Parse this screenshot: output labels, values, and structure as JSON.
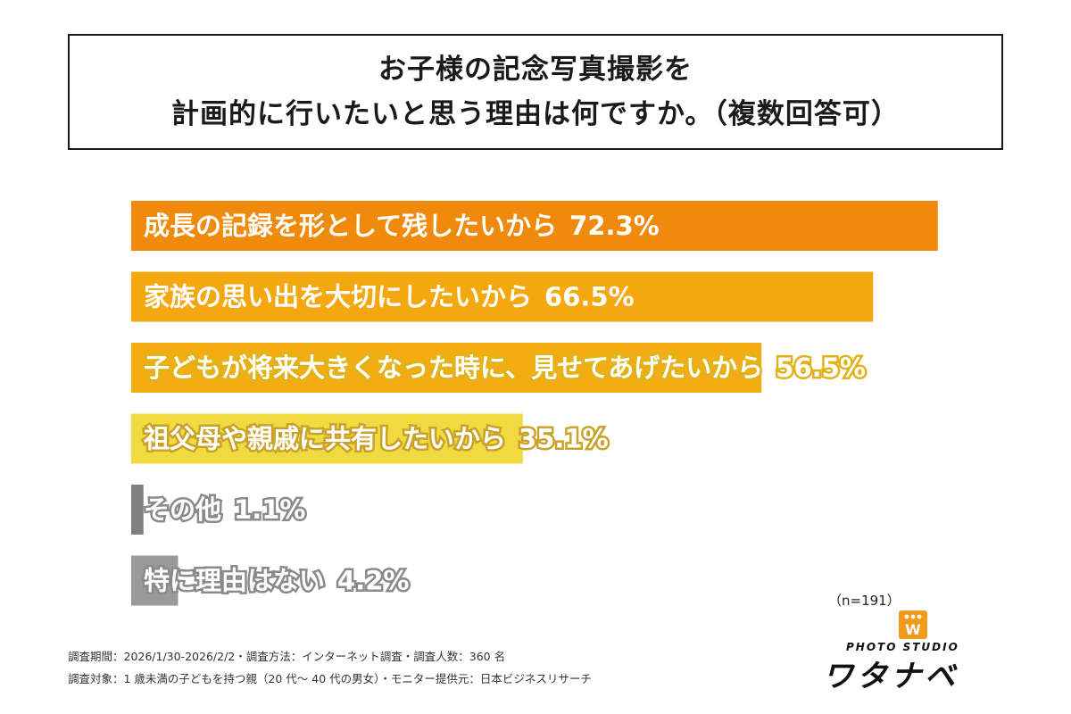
{
  "title": {
    "line1": "お子様の記念写真撮影を",
    "line2": "計画的に行いたいと思う理由は何ですか。（複数回答可）"
  },
  "chart_data": {
    "type": "bar",
    "orientation": "horizontal",
    "categories": [
      "成長の記録を形として残したいから",
      "家族の思い出を大切にしたいから",
      "子どもが将来大きくなった時に、見せてあげたいから",
      "祖父母や親戚に共有したいから",
      "その他",
      "特に理由はない"
    ],
    "values": [
      72.3,
      66.5,
      56.5,
      35.1,
      1.1,
      4.2
    ],
    "value_labels": [
      "72.3%",
      "66.5%",
      "56.5%",
      "35.1%",
      "1.1%",
      "4.2%"
    ],
    "bar_colors": [
      "#ef8a0c",
      "#f5a70f",
      "#f3ad12",
      "#f1d940",
      "#808080",
      "#9a9a9a"
    ],
    "label_outline_colors": [
      "none",
      "none",
      "#e2b21a",
      "#c9a227",
      "#8a8a8a",
      "#8a8a8a"
    ],
    "xlim": [
      0,
      100
    ],
    "grid": false,
    "legend": "none"
  },
  "sample_size": "（n=191）",
  "footnotes": {
    "line1": "調査期間：2026/1/30-2026/2/2・調査方法：インターネット調査・調査人数：360 名",
    "line2": "調査対象：1 歳未満の子どもを持つ親（20 代～ 40 代の男女）・モニター提供元：日本ビジネスリサーチ"
  },
  "logo": {
    "mark_letter": "W",
    "studio_text": "PHOTO STUDIO",
    "name_text": "ワタナベ",
    "mark_color": "#f29a1a"
  }
}
